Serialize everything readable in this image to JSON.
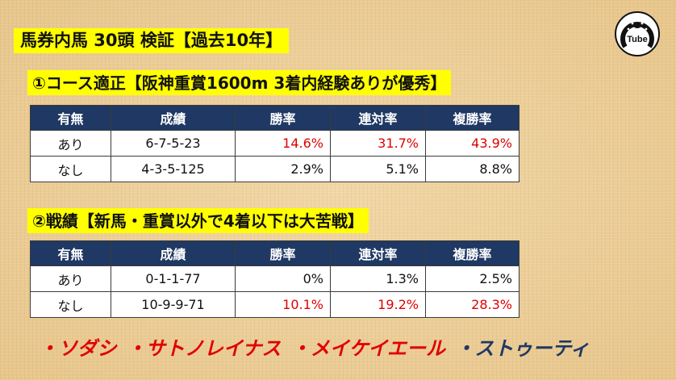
{
  "header": {
    "title": "馬券内馬 30頭 検証【過去10年】"
  },
  "logo": {
    "icon": "horseshoe-logo-icon",
    "text": "Tube"
  },
  "section1": {
    "title": "①コース適正【阪神重賞1600m 3着内経験ありが優秀】",
    "columns": [
      "有無",
      "成績",
      "勝率",
      "連対率",
      "複勝率"
    ],
    "rows": [
      {
        "label": "あり",
        "record": "6-7-5-23",
        "win": "14.6%",
        "quinella": "31.7%",
        "place": "43.9%"
      },
      {
        "label": "なし",
        "record": "4-3-5-125",
        "win": "2.9%",
        "quinella": "5.1%",
        "place": "8.8%"
      }
    ]
  },
  "section2": {
    "title": "②戦績【新馬・重賞以外で4着以下は大苦戦】",
    "columns": [
      "有無",
      "成績",
      "勝率",
      "連対率",
      "複勝率"
    ],
    "rows": [
      {
        "label": "あり",
        "record": "0-1-1-77",
        "win": "0%",
        "quinella": "1.3%",
        "place": "2.5%"
      },
      {
        "label": "なし",
        "record": "10-9-9-71",
        "win": "10.1%",
        "quinella": "19.2%",
        "place": "28.3%"
      }
    ]
  },
  "horses": {
    "items": [
      "・ソダシ",
      "・サトノレイナス",
      "・メイケイエール",
      "・ストゥーティ"
    ],
    "colors": [
      "#e00000",
      "#e00000",
      "#e00000",
      "#1f3864"
    ]
  }
}
